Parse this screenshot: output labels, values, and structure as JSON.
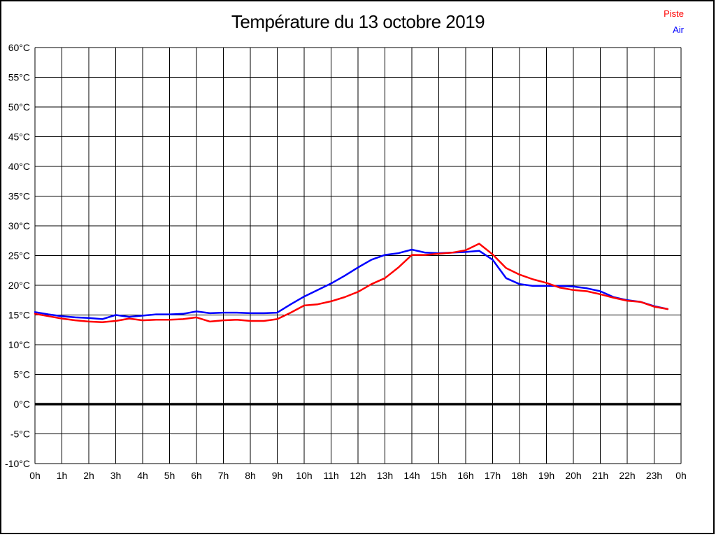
{
  "title": "Température du 13 octobre 2019",
  "legend": [
    {
      "label": "Piste",
      "color": "#ff0000"
    },
    {
      "label": "Air",
      "color": "#0000ff"
    }
  ],
  "colors": {
    "background": "#ffffff",
    "grid": "#000000",
    "zero_line": "#000000",
    "frame": "#000000"
  },
  "chart_data": {
    "type": "line",
    "title": "Température du 13 octobre 2019",
    "xlabel": "",
    "ylabel": "",
    "xlim": [
      0,
      24
    ],
    "ylim": [
      -10,
      60
    ],
    "grid": true,
    "legend_position": "top-right",
    "zero_line_at": 0,
    "x_start": 0,
    "x_step": 0.5,
    "x_tick_labels": [
      "0h",
      "1h",
      "2h",
      "3h",
      "4h",
      "5h",
      "6h",
      "7h",
      "8h",
      "9h",
      "10h",
      "11h",
      "12h",
      "13h",
      "14h",
      "15h",
      "16h",
      "17h",
      "18h",
      "19h",
      "20h",
      "21h",
      "22h",
      "23h",
      "0h"
    ],
    "y_tick_values": [
      60,
      55,
      50,
      45,
      40,
      35,
      30,
      25,
      20,
      15,
      10,
      5,
      0,
      -5,
      -10
    ],
    "y_tick_labels": [
      "60°C",
      "55°C",
      "50°C",
      "45°C",
      "40°C",
      "35°C",
      "30°C",
      "25°C",
      "20°C",
      "15°C",
      "10°C",
      "5°C",
      "0°C",
      "-5°C",
      "-10°C"
    ],
    "series": [
      {
        "name": "Piste",
        "color": "#ff0000",
        "values": [
          15.2,
          14.8,
          14.4,
          14.1,
          13.9,
          13.8,
          14.0,
          14.4,
          14.1,
          14.2,
          14.2,
          14.3,
          14.6,
          13.9,
          14.1,
          14.2,
          14.0,
          14.0,
          14.3,
          15.4,
          16.6,
          16.8,
          17.3,
          18.0,
          18.9,
          20.2,
          21.2,
          23.0,
          25.1,
          25.1,
          25.3,
          25.5,
          25.9,
          27.0,
          25.2,
          22.9,
          21.8,
          21.0,
          20.4,
          19.6,
          19.2,
          19.0,
          18.5,
          17.9,
          17.4,
          17.2,
          16.4,
          16.0
        ]
      },
      {
        "name": "Air",
        "color": "#0000ff",
        "values": [
          15.5,
          15.1,
          14.8,
          14.6,
          14.5,
          14.3,
          15.0,
          14.7,
          14.9,
          15.1,
          15.1,
          15.2,
          15.6,
          15.3,
          15.4,
          15.4,
          15.3,
          15.3,
          15.4,
          16.8,
          18.1,
          19.2,
          20.3,
          21.6,
          23.0,
          24.3,
          25.1,
          25.4,
          26.0,
          25.5,
          25.4,
          25.5,
          25.6,
          25.8,
          24.3,
          21.2,
          20.2,
          19.9,
          19.9,
          19.9,
          19.8,
          19.5,
          19.0,
          18.0,
          17.5,
          17.2,
          16.5,
          16.0
        ]
      }
    ]
  }
}
